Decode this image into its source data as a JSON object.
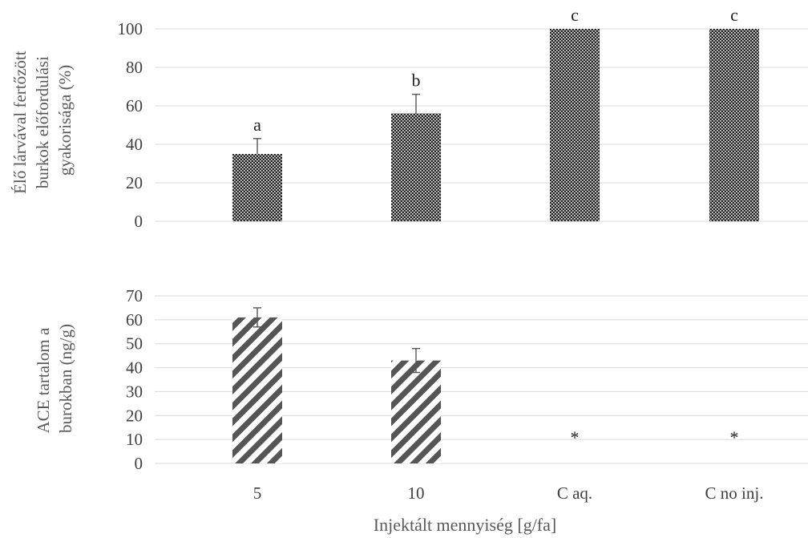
{
  "chart_data": [
    {
      "type": "bar",
      "panel": "top",
      "categories": [
        "5",
        "10",
        "C aq.",
        "C no inj."
      ],
      "values": [
        35,
        56,
        100,
        100
      ],
      "errors": [
        8,
        10,
        0,
        0
      ],
      "annotations": [
        "a",
        "b",
        "c",
        "c"
      ],
      "ylabel_lines": [
        "Élő lárvával fertőzött",
        "burkok előfordulási",
        "gyakorisága (%)"
      ],
      "ylim": [
        0,
        100
      ],
      "yticks": [
        0,
        20,
        40,
        60,
        80,
        100
      ],
      "grid": true,
      "colors": {
        "bar": "#262626",
        "bar_dots": "#ffffff",
        "error": "#555555"
      }
    },
    {
      "type": "bar",
      "panel": "bottom",
      "categories": [
        "5",
        "10",
        "C aq.",
        "C no inj."
      ],
      "values": [
        61,
        43,
        null,
        null
      ],
      "errors": [
        4,
        5,
        0,
        0
      ],
      "annotations": [
        "",
        "",
        "*",
        "*"
      ],
      "ylabel_lines": [
        "ACE tartalom a",
        "burokban (ng/g)"
      ],
      "ylim": [
        0,
        70
      ],
      "yticks": [
        0,
        10,
        20,
        30,
        40,
        50,
        60,
        70
      ],
      "grid": true,
      "colors": {
        "bar": "#555555",
        "bar_stripe": "#ffffff",
        "error": "#555555"
      }
    }
  ],
  "xlabel": "Injektált mennyiség [g/fa]"
}
